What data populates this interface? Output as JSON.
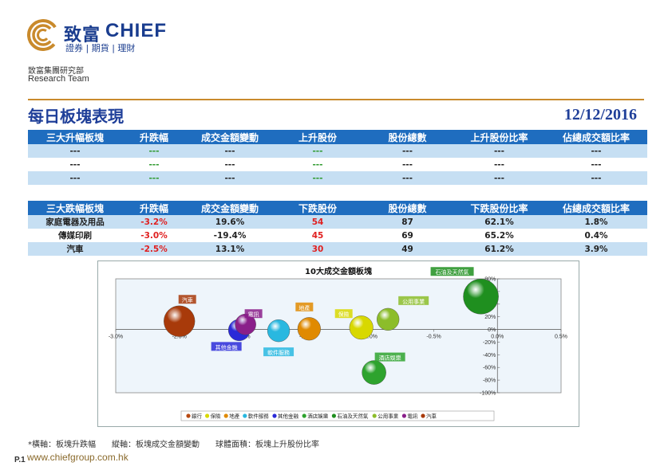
{
  "header": {
    "brand_cn": "致富",
    "brand_en": "CHIEF",
    "brand_sub": "證券 | 期貨 | 理財",
    "team_cn": "致富集團研究部",
    "team_en": "Research Team"
  },
  "title": "每日板塊表現",
  "date": "12/12/2016",
  "up_table": {
    "headers": [
      "三大升幅板塊",
      "升跌幅",
      "成交金額變動",
      "上升股份",
      "股份總數",
      "上升股份比率",
      "佔總成交額比率"
    ],
    "rows": [
      [
        "---",
        "---",
        "---",
        "---",
        "---",
        "---",
        "---"
      ],
      [
        "---",
        "---",
        "---",
        "---",
        "---",
        "---",
        "---"
      ],
      [
        "---",
        "---",
        "---",
        "---",
        "---",
        "---",
        "---"
      ]
    ]
  },
  "down_table": {
    "headers": [
      "三大跌幅板塊",
      "升跌幅",
      "成交金額變動",
      "下跌股份",
      "股份總數",
      "下跌股份比率",
      "佔總成交額比率"
    ],
    "rows": [
      [
        "家庭電器及用品",
        "-3.2%",
        "19.6%",
        "54",
        "87",
        "62.1%",
        "1.8%"
      ],
      [
        "傳媒印刷",
        "-3.0%",
        "-19.4%",
        "45",
        "69",
        "65.2%",
        "0.4%"
      ],
      [
        "汽車",
        "-2.5%",
        "13.1%",
        "30",
        "49",
        "61.2%",
        "3.9%"
      ]
    ]
  },
  "chart_data": {
    "type": "scatter",
    "title": "10大成交金額板塊",
    "xlim": [
      -3.0,
      0.5
    ],
    "ylim": [
      -100,
      80
    ],
    "x_ticks": [
      "-3.0%",
      "-2.5%",
      "-2.0%",
      "-1.5%",
      "-1.0%",
      "-0.5%",
      "0.0%",
      "0.5%"
    ],
    "y_ticks": [
      "80%",
      "60%",
      "40%",
      "20%",
      "0%",
      "-20%",
      "-40%",
      "-60%",
      "-80%",
      "-100%"
    ],
    "series": [
      {
        "name": "銀行",
        "x": -2.49,
        "y": 12,
        "size": 0.47,
        "color": "#b84a12",
        "label": ""
      },
      {
        "name": "保險",
        "x": -1.07,
        "y": 3,
        "size": 0.4,
        "color": "#d8d800",
        "label": "保險"
      },
      {
        "name": "地產",
        "x": -1.48,
        "y": 1,
        "size": 0.38,
        "color": "#e08a00",
        "label": "地產"
      },
      {
        "name": "軟件服務",
        "x": -1.72,
        "y": -2,
        "size": 0.36,
        "color": "#29b8e0",
        "label": "軟件服務"
      },
      {
        "name": "其他金融",
        "x": -2.03,
        "y": -1,
        "size": 0.34,
        "color": "#2a2ad8",
        "label": "其他金融"
      },
      {
        "name": "酒店娛樂",
        "x": -0.97,
        "y": -68,
        "size": 0.41,
        "color": "#2ea32e",
        "label": "酒店娛樂"
      },
      {
        "name": "石油及天然氣",
        "x": -0.13,
        "y": 52,
        "size": 0.73,
        "color": "#1f8f1f",
        "label": "石油及天然氣"
      },
      {
        "name": "公用事業",
        "x": -0.86,
        "y": 16,
        "size": 0.36,
        "color": "#8cbd2a",
        "label": "公用事業"
      },
      {
        "name": "電訊",
        "x": -1.98,
        "y": 8,
        "size": 0.32,
        "color": "#8a1f8a",
        "label": "電訊"
      },
      {
        "name": "汽車",
        "x": -2.5,
        "y": 13,
        "size": 0.61,
        "color": "#a83a0a",
        "label": "汽車"
      }
    ]
  },
  "footnote": "*橫軸：板塊升跌幅　　縱軸：板塊成交金額變動　　球體面積：板塊上升股份比率",
  "page_number": "P.1",
  "website": "www.chiefgroup.com.hk"
}
